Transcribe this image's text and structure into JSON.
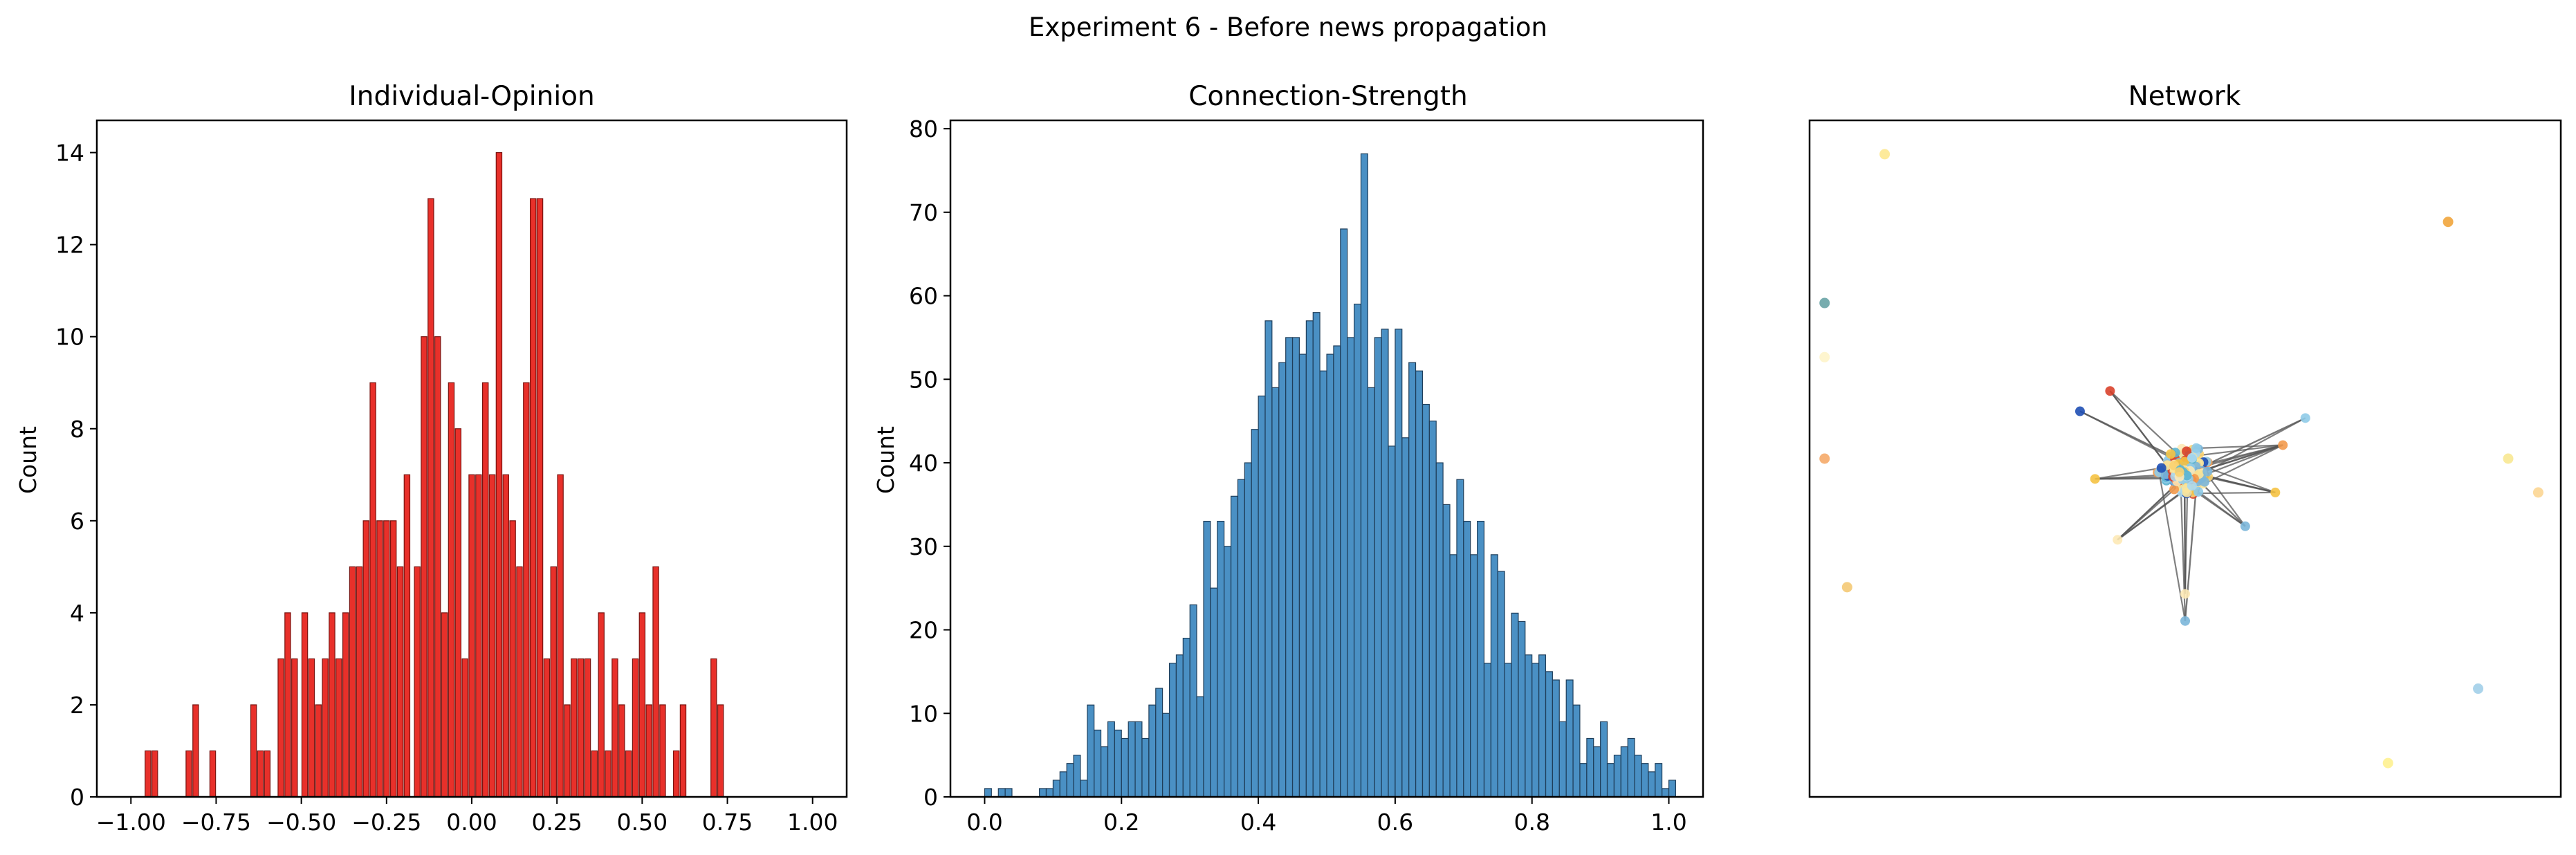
{
  "suptitle": "Experiment 6 - Before news propagation",
  "chart_data": [
    {
      "type": "bar",
      "title": "Individual-Opinion",
      "xlabel": "",
      "ylabel": "Count",
      "xlim": [
        -1.1,
        1.1
      ],
      "ylim": [
        0,
        14.7
      ],
      "xticks": [
        "-1.00",
        "-0.75",
        "-0.50",
        "-0.25",
        "0.00",
        "0.25",
        "0.50",
        "0.75",
        "1.00"
      ],
      "yticks": [
        "0",
        "2",
        "4",
        "6",
        "8",
        "10",
        "12",
        "14"
      ],
      "bin_width": 0.0167,
      "bins": [
        [
          -0.95,
          1
        ],
        [
          -0.93,
          1
        ],
        [
          -0.83,
          1
        ],
        [
          -0.81,
          2
        ],
        [
          -0.76,
          1
        ],
        [
          -0.64,
          2
        ],
        [
          -0.62,
          1
        ],
        [
          -0.6,
          1
        ],
        [
          -0.56,
          3
        ],
        [
          -0.54,
          4
        ],
        [
          -0.52,
          3
        ],
        [
          -0.49,
          4
        ],
        [
          -0.47,
          3
        ],
        [
          -0.45,
          2
        ],
        [
          -0.43,
          3
        ],
        [
          -0.41,
          4
        ],
        [
          -0.39,
          3
        ],
        [
          -0.37,
          4
        ],
        [
          -0.35,
          5
        ],
        [
          -0.33,
          5
        ],
        [
          -0.31,
          6
        ],
        [
          -0.29,
          9
        ],
        [
          -0.27,
          6
        ],
        [
          -0.25,
          6
        ],
        [
          -0.23,
          6
        ],
        [
          -0.21,
          5
        ],
        [
          -0.19,
          7
        ],
        [
          -0.16,
          5
        ],
        [
          -0.14,
          10
        ],
        [
          -0.12,
          13
        ],
        [
          -0.1,
          10
        ],
        [
          -0.08,
          4
        ],
        [
          -0.06,
          9
        ],
        [
          -0.04,
          8
        ],
        [
          -0.02,
          3
        ],
        [
          0.0,
          7
        ],
        [
          0.02,
          7
        ],
        [
          0.04,
          9
        ],
        [
          0.06,
          7
        ],
        [
          0.08,
          14
        ],
        [
          0.1,
          7
        ],
        [
          0.12,
          6
        ],
        [
          0.14,
          5
        ],
        [
          0.16,
          9
        ],
        [
          0.18,
          13
        ],
        [
          0.2,
          13
        ],
        [
          0.22,
          3
        ],
        [
          0.24,
          5
        ],
        [
          0.26,
          7
        ],
        [
          0.28,
          2
        ],
        [
          0.3,
          3
        ],
        [
          0.32,
          3
        ],
        [
          0.34,
          3
        ],
        [
          0.36,
          1
        ],
        [
          0.38,
          4
        ],
        [
          0.4,
          1
        ],
        [
          0.42,
          3
        ],
        [
          0.44,
          2
        ],
        [
          0.46,
          1
        ],
        [
          0.48,
          3
        ],
        [
          0.5,
          4
        ],
        [
          0.52,
          2
        ],
        [
          0.54,
          5
        ],
        [
          0.56,
          2
        ],
        [
          0.6,
          1
        ],
        [
          0.62,
          2
        ],
        [
          0.71,
          3
        ],
        [
          0.73,
          2
        ]
      ],
      "bar_color": "#e8302a",
      "edge_color": "#7a1410"
    },
    {
      "type": "bar",
      "title": "Connection-Strength",
      "xlabel": "",
      "ylabel": "Count",
      "xlim": [
        -0.05,
        1.05
      ],
      "ylim": [
        0,
        81
      ],
      "xticks": [
        "0.0",
        "0.2",
        "0.4",
        "0.6",
        "0.8",
        "1.0"
      ],
      "yticks": [
        "0",
        "10",
        "20",
        "30",
        "40",
        "50",
        "60",
        "70",
        "80"
      ],
      "bin_width": 0.0099,
      "bins": [
        [
          0.005,
          1
        ],
        [
          0.025,
          1
        ],
        [
          0.035,
          1
        ],
        [
          0.085,
          1
        ],
        [
          0.095,
          1
        ],
        [
          0.105,
          2
        ],
        [
          0.115,
          3
        ],
        [
          0.125,
          4
        ],
        [
          0.135,
          5
        ],
        [
          0.145,
          2
        ],
        [
          0.155,
          11
        ],
        [
          0.165,
          8
        ],
        [
          0.175,
          6
        ],
        [
          0.185,
          9
        ],
        [
          0.195,
          8
        ],
        [
          0.205,
          7
        ],
        [
          0.215,
          9
        ],
        [
          0.225,
          9
        ],
        [
          0.235,
          7
        ],
        [
          0.245,
          11
        ],
        [
          0.255,
          13
        ],
        [
          0.265,
          10
        ],
        [
          0.275,
          16
        ],
        [
          0.285,
          17
        ],
        [
          0.295,
          19
        ],
        [
          0.305,
          23
        ],
        [
          0.315,
          12
        ],
        [
          0.325,
          33
        ],
        [
          0.335,
          25
        ],
        [
          0.345,
          33
        ],
        [
          0.355,
          30
        ],
        [
          0.365,
          36
        ],
        [
          0.375,
          38
        ],
        [
          0.385,
          40
        ],
        [
          0.395,
          44
        ],
        [
          0.405,
          48
        ],
        [
          0.415,
          57
        ],
        [
          0.425,
          49
        ],
        [
          0.435,
          52
        ],
        [
          0.445,
          55
        ],
        [
          0.455,
          55
        ],
        [
          0.465,
          53
        ],
        [
          0.475,
          57
        ],
        [
          0.485,
          58
        ],
        [
          0.495,
          51
        ],
        [
          0.505,
          53
        ],
        [
          0.515,
          54
        ],
        [
          0.525,
          68
        ],
        [
          0.535,
          55
        ],
        [
          0.545,
          59
        ],
        [
          0.555,
          77
        ],
        [
          0.565,
          49
        ],
        [
          0.575,
          55
        ],
        [
          0.585,
          56
        ],
        [
          0.595,
          42
        ],
        [
          0.605,
          56
        ],
        [
          0.615,
          43
        ],
        [
          0.625,
          52
        ],
        [
          0.635,
          51
        ],
        [
          0.645,
          47
        ],
        [
          0.655,
          45
        ],
        [
          0.665,
          40
        ],
        [
          0.675,
          35
        ],
        [
          0.685,
          29
        ],
        [
          0.695,
          38
        ],
        [
          0.705,
          33
        ],
        [
          0.715,
          29
        ],
        [
          0.725,
          33
        ],
        [
          0.735,
          16
        ],
        [
          0.745,
          29
        ],
        [
          0.755,
          27
        ],
        [
          0.765,
          16
        ],
        [
          0.775,
          22
        ],
        [
          0.785,
          21
        ],
        [
          0.795,
          17
        ],
        [
          0.805,
          16
        ],
        [
          0.815,
          17
        ],
        [
          0.825,
          15
        ],
        [
          0.835,
          14
        ],
        [
          0.845,
          9
        ],
        [
          0.855,
          14
        ],
        [
          0.865,
          11
        ],
        [
          0.875,
          4
        ],
        [
          0.885,
          7
        ],
        [
          0.895,
          6
        ],
        [
          0.905,
          9
        ],
        [
          0.915,
          4
        ],
        [
          0.925,
          5
        ],
        [
          0.935,
          6
        ],
        [
          0.945,
          7
        ],
        [
          0.955,
          5
        ],
        [
          0.965,
          4
        ],
        [
          0.975,
          3
        ],
        [
          0.985,
          4
        ],
        [
          0.995,
          1
        ],
        [
          1.005,
          2
        ]
      ],
      "bar_color": "#4a90c4",
      "edge_color": "#1f3e5a"
    },
    {
      "type": "scatter",
      "title": "Network",
      "xlabel": "",
      "ylabel": "",
      "xlim": [
        0,
        1
      ],
      "ylim": [
        0,
        1
      ],
      "edge_color": "#555555",
      "isolated_nodes": [
        [
          0.1,
          0.95,
          "#fde68a"
        ],
        [
          0.02,
          0.73,
          "#5f9ea0"
        ],
        [
          0.02,
          0.65,
          "#fef3c7"
        ],
        [
          0.02,
          0.5,
          "#f4a460"
        ],
        [
          0.05,
          0.31,
          "#f3c56c"
        ],
        [
          0.85,
          0.85,
          "#f0a030"
        ],
        [
          0.93,
          0.5,
          "#f8e68c"
        ],
        [
          0.97,
          0.45,
          "#fbd38d"
        ],
        [
          0.89,
          0.16,
          "#9ccde8"
        ],
        [
          0.77,
          0.05,
          "#fef08a"
        ]
      ],
      "cluster": {
        "center": [
          0.5,
          0.48
        ],
        "radius": 0.1,
        "count": 260
      },
      "node_colors": [
        "#fbe49a",
        "#f9d270",
        "#8fcbe8",
        "#aad8ef",
        "#1f4fb4",
        "#d9412b",
        "#f39a4d",
        "#7bb6d9",
        "#f5c242",
        "#5ab4cf",
        "#fde9b6"
      ]
    }
  ]
}
